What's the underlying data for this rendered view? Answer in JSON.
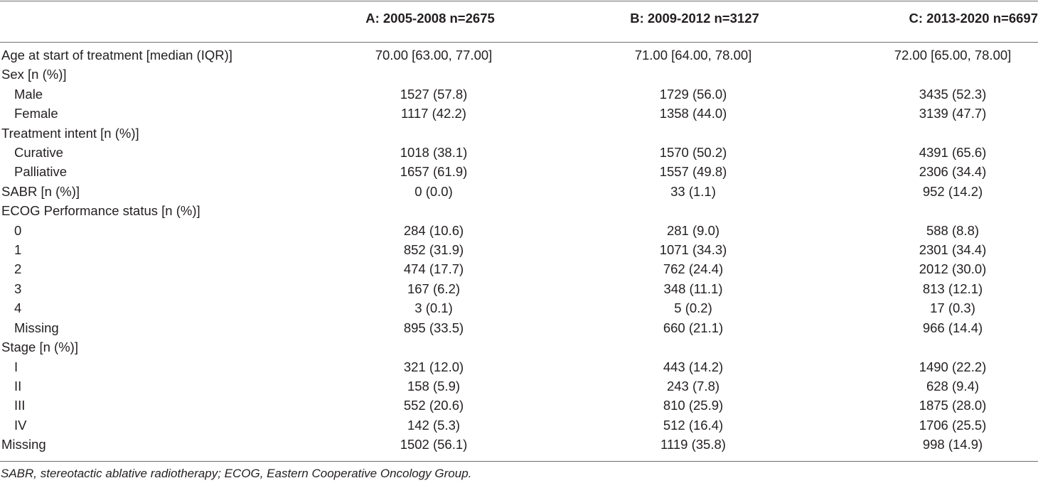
{
  "header": {
    "col0": "",
    "col1": "A: 2005-2008 n=2675",
    "col2": "B: 2009-2012 n=3127",
    "col3": "C: 2013-2020 n=6697"
  },
  "rows": [
    {
      "label": "Age at start of treatment [median (IQR)]",
      "a": "70.00 [63.00, 77.00]",
      "b": "71.00 [64.00, 78.00]",
      "c": "72.00 [65.00, 78.00]"
    },
    {
      "label": "Sex [n (%)]",
      "a": "",
      "b": "",
      "c": ""
    },
    {
      "label": "Male",
      "a": "1527 (57.8)",
      "b": "1729 (56.0)",
      "c": "3435 (52.3)"
    },
    {
      "label": "Female",
      "a": "1117 (42.2)",
      "b": "1358 (44.0)",
      "c": "3139 (47.7)"
    },
    {
      "label": "Treatment intent [n (%)]",
      "a": "",
      "b": "",
      "c": ""
    },
    {
      "label": "Curative",
      "a": "1018 (38.1)",
      "b": "1570 (50.2)",
      "c": "4391 (65.6)"
    },
    {
      "label": "Palliative",
      "a": "1657 (61.9)",
      "b": "1557 (49.8)",
      "c": "2306 (34.4)"
    },
    {
      "label": "SABR [n (%)]",
      "a": "0 (0.0)",
      "b": "33 (1.1)",
      "c": "952 (14.2)"
    },
    {
      "label": "ECOG Performance status [n (%)]",
      "a": "",
      "b": "",
      "c": ""
    },
    {
      "label": "0",
      "a": "284 (10.6)",
      "b": "281 (9.0)",
      "c": "588 (8.8)"
    },
    {
      "label": "1",
      "a": "852 (31.9)",
      "b": "1071 (34.3)",
      "c": "2301 (34.4)"
    },
    {
      "label": "2",
      "a": "474 (17.7)",
      "b": "762 (24.4)",
      "c": "2012 (30.0)"
    },
    {
      "label": "3",
      "a": "167 (6.2)",
      "b": "348 (11.1)",
      "c": "813 (12.1)"
    },
    {
      "label": "4",
      "a": "3 (0.1)",
      "b": "5 (0.2)",
      "c": "17 (0.3)"
    },
    {
      "label": "Missing",
      "a": "895 (33.5)",
      "b": "660 (21.1)",
      "c": "966 (14.4)"
    },
    {
      "label": "Stage [n (%)]",
      "a": "",
      "b": "",
      "c": ""
    },
    {
      "label": "I",
      "a": "321 (12.0)",
      "b": "443 (14.2)",
      "c": "1490 (22.2)"
    },
    {
      "label": "II",
      "a": "158 (5.9)",
      "b": "243 (7.8)",
      "c": "628 (9.4)"
    },
    {
      "label": "III",
      "a": "552 (20.6)",
      "b": "810 (25.9)",
      "c": "1875 (28.0)"
    },
    {
      "label": "IV",
      "a": "142 (5.3)",
      "b": "512 (16.4)",
      "c": "1706 (25.5)"
    },
    {
      "label": "Missing",
      "a": "1502 (56.1)",
      "b": "1119 (35.8)",
      "c": "998 (14.9)"
    }
  ],
  "footnote": "SABR, stereotactic ablative radiotherapy; ECOG, Eastern Cooperative Oncology Group."
}
